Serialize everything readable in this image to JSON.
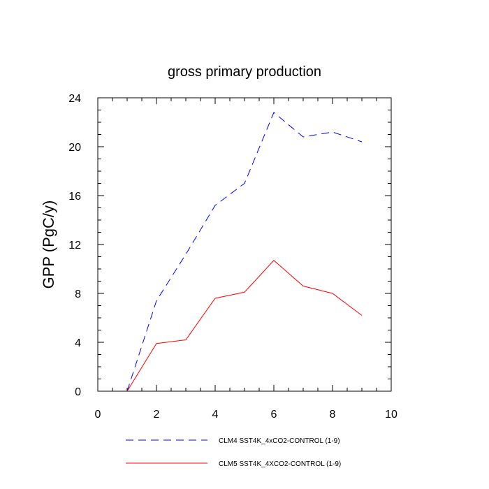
{
  "chart_data": {
    "type": "line",
    "title": "gross primary production",
    "xlabel": "",
    "ylabel": "GPP  (PgC/y)",
    "xlim": [
      0,
      10
    ],
    "ylim": [
      0,
      24
    ],
    "x_ticks": [
      0,
      2,
      4,
      6,
      8,
      10
    ],
    "y_ticks": [
      0,
      4,
      8,
      12,
      16,
      20,
      24
    ],
    "grid": false,
    "legend_position": "bottom",
    "series": [
      {
        "name": "CLM4 SST4K_4xCO2-CONTROL (1-9)",
        "color": "#0000ff",
        "style": "dashed",
        "x": [
          1,
          2,
          3,
          4,
          5,
          6,
          7,
          8,
          9
        ],
        "y": [
          0.0,
          7.4,
          11.2,
          15.2,
          17.0,
          22.8,
          20.8,
          21.2,
          20.4
        ]
      },
      {
        "name": "CLM5 SST4K_4XCO2-CONTROL (1-9)",
        "color": "#ff0000",
        "style": "solid",
        "x": [
          1,
          2,
          3,
          4,
          5,
          6,
          7,
          8,
          9
        ],
        "y": [
          0.0,
          3.9,
          4.2,
          7.6,
          8.1,
          10.7,
          8.6,
          8.0,
          6.2
        ]
      }
    ]
  }
}
